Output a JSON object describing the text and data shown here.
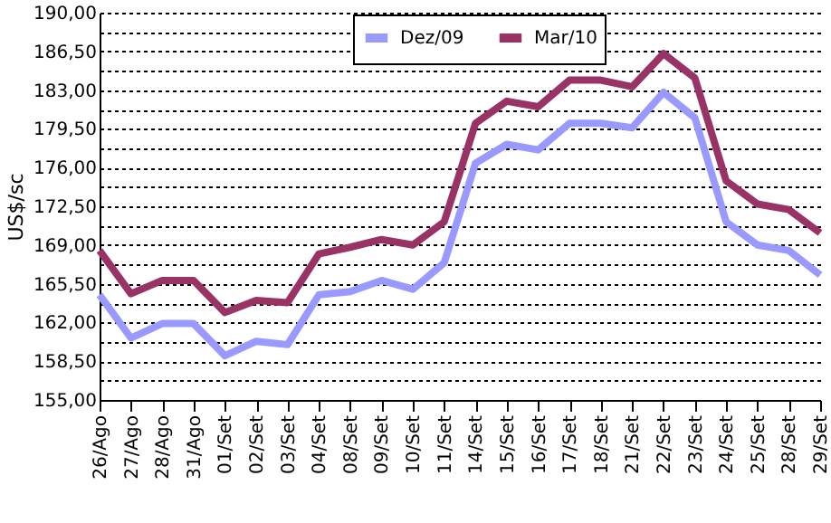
{
  "chart_data": {
    "type": "line",
    "ylabel": "US$/sc",
    "categories": [
      "26/Ago",
      "27/Ago",
      "28/Ago",
      "31/Ago",
      "01/Set",
      "02/Set",
      "03/Set",
      "04/Set",
      "08/Set",
      "09/Set",
      "10/Set",
      "11/Set",
      "14/Set",
      "15/Set",
      "16/Set",
      "17/Set",
      "18/Set",
      "21/Set",
      "22/Set",
      "23/Set",
      "24/Set",
      "25/Set",
      "28/Set",
      "29/Set"
    ],
    "series": [
      {
        "name": "Dez/09",
        "color": "#9999ff",
        "values": [
          164.5,
          160.6,
          161.9,
          161.9,
          159.0,
          160.3,
          160.0,
          164.5,
          164.8,
          165.8,
          165.0,
          167.4,
          176.4,
          178.1,
          177.6,
          180.0,
          180.0,
          179.6,
          182.8,
          180.5,
          171.1,
          169.0,
          168.5,
          166.3
        ]
      },
      {
        "name": "Mar/10",
        "color": "#993366",
        "values": [
          168.5,
          164.6,
          165.8,
          165.8,
          162.9,
          164.0,
          163.8,
          168.2,
          168.8,
          169.5,
          169.0,
          171.1,
          180.0,
          182.0,
          181.5,
          183.9,
          183.9,
          183.3,
          186.3,
          184.1,
          174.8,
          172.7,
          172.2,
          170.1
        ]
      }
    ],
    "ylim": [
      155,
      190
    ],
    "yticks": [
      {
        "value": 155,
        "label": "155,00"
      },
      {
        "value": 156.75,
        "label": null
      },
      {
        "value": 158.5,
        "label": "158,50"
      },
      {
        "value": 160.25,
        "label": null
      },
      {
        "value": 162,
        "label": "162,00"
      },
      {
        "value": 163.75,
        "label": null
      },
      {
        "value": 165.5,
        "label": "165,50"
      },
      {
        "value": 167.25,
        "label": null
      },
      {
        "value": 169,
        "label": "169,00"
      },
      {
        "value": 170.75,
        "label": null
      },
      {
        "value": 172.5,
        "label": "172,50"
      },
      {
        "value": 174.25,
        "label": null
      },
      {
        "value": 176,
        "label": "176,00"
      },
      {
        "value": 177.75,
        "label": null
      },
      {
        "value": 179.5,
        "label": "179,50"
      },
      {
        "value": 181.25,
        "label": null
      },
      {
        "value": 183,
        "label": "183,00"
      },
      {
        "value": 184.75,
        "label": null
      },
      {
        "value": 186.5,
        "label": "186,50"
      },
      {
        "value": 188.25,
        "label": null
      },
      {
        "value": 190,
        "label": "190,00"
      }
    ],
    "grid": "y",
    "legend": "top",
    "marker": "none",
    "line_style": "solid"
  }
}
